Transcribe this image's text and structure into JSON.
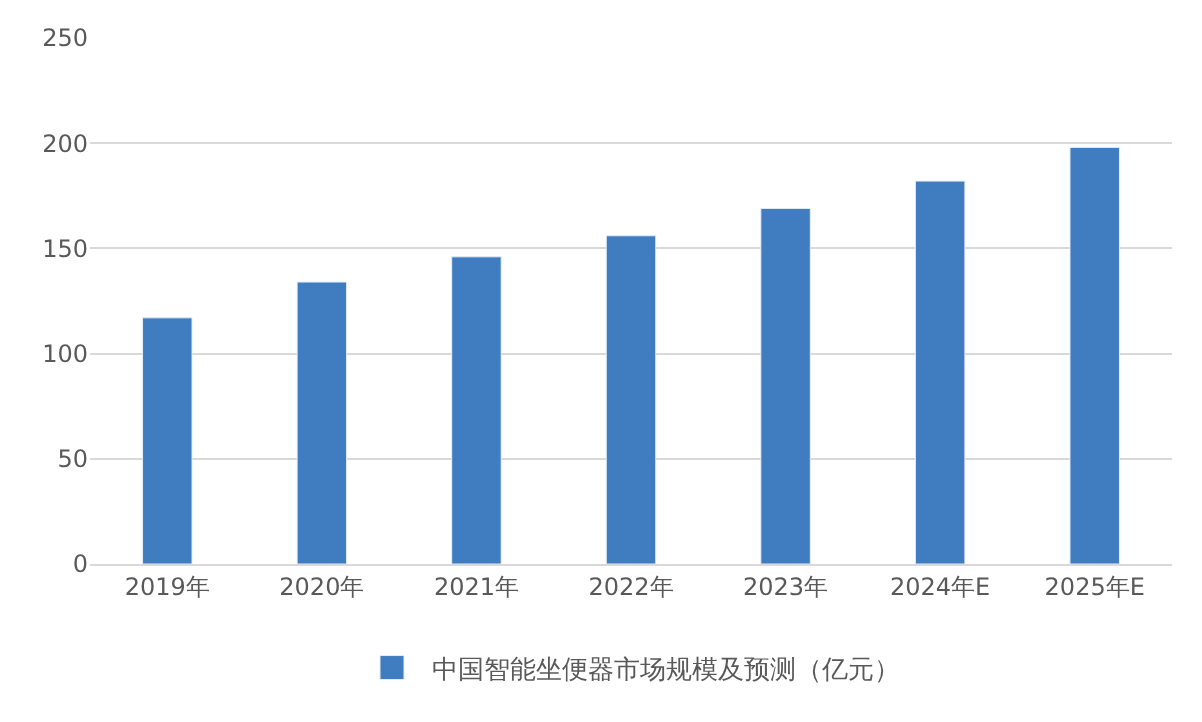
{
  "chart_data": {
    "type": "bar",
    "categories": [
      "2019年",
      "2020年",
      "2021年",
      "2022年",
      "2023年",
      "2024年E",
      "2025年E"
    ],
    "series": [
      {
        "name": "中国智能坐便器市场规模及预测（亿元）",
        "color": "#3f7cc0",
        "values": [
          117,
          134,
          146,
          156,
          169,
          182,
          198
        ]
      }
    ],
    "ylim": [
      0,
      250
    ],
    "yticks": [
      0,
      50,
      100,
      150,
      200,
      250
    ],
    "grid": "y",
    "legend": "bottom"
  }
}
